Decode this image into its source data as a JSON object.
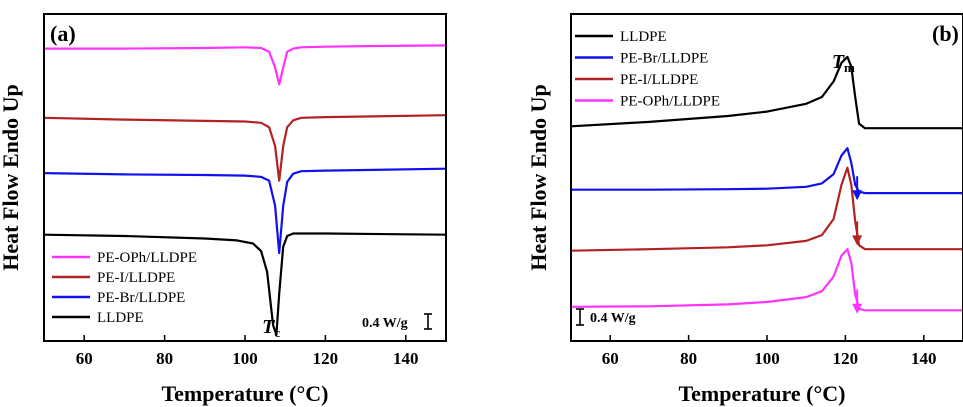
{
  "chart_data": [
    {
      "panel_label": "(a)",
      "type": "line",
      "xlabel": "Temperature (°C)",
      "ylabel": "Heat Flow Endo Up",
      "xlim": [
        50,
        150
      ],
      "xticks": [
        60,
        80,
        100,
        120,
        140
      ],
      "y_units_hidden": true,
      "scale_bar": "0.4 W/g",
      "annotation": {
        "main": "T",
        "sub": "c",
        "x": 107.5
      },
      "legend_position": "bottom-left",
      "legend_order": [
        "PE-OPh/LLDPE",
        "PE-I/LLDPE",
        "PE-Br/LLDPE",
        "LLDPE"
      ],
      "series": [
        {
          "name": "PE-OPh/LLDPE",
          "color": "#ff33ff",
          "x": [
            50,
            70,
            90,
            100,
            104,
            106,
            107.5,
            108.5,
            109.5,
            110.5,
            112,
            114,
            120,
            130,
            150
          ],
          "y": [
            3.1,
            3.1,
            3.11,
            3.12,
            3.11,
            3.05,
            2.8,
            2.53,
            2.8,
            3.05,
            3.1,
            3.12,
            3.13,
            3.14,
            3.15
          ]
        },
        {
          "name": "PE-I/LLDPE",
          "color": "#b22222",
          "x": [
            50,
            70,
            90,
            100,
            104,
            106,
            107.5,
            108.5,
            109.5,
            110.5,
            112,
            114,
            120,
            130,
            150
          ],
          "y": [
            2.0,
            1.97,
            1.95,
            1.94,
            1.92,
            1.85,
            1.55,
            1.0,
            1.55,
            1.85,
            1.96,
            2.0,
            2.01,
            2.02,
            2.04
          ]
        },
        {
          "name": "PE-Br/LLDPE",
          "color": "#1111ee",
          "x": [
            50,
            70,
            90,
            100,
            104,
            106,
            107.5,
            108.5,
            109.5,
            110.5,
            112,
            114,
            120,
            130,
            150
          ],
          "y": [
            1.12,
            1.1,
            1.09,
            1.08,
            1.06,
            1.0,
            0.6,
            -0.15,
            0.6,
            0.98,
            1.11,
            1.15,
            1.16,
            1.17,
            1.19
          ]
        },
        {
          "name": "LLDPE",
          "color": "#000000",
          "x": [
            50,
            70,
            90,
            98,
            102,
            104,
            105.5,
            107,
            107.8,
            108.5,
            109.5,
            110.5,
            112,
            120,
            150
          ],
          "y": [
            0.14,
            0.12,
            0.08,
            0.05,
            0.0,
            -0.12,
            -0.45,
            -1.3,
            -1.45,
            -0.8,
            -0.05,
            0.12,
            0.16,
            0.16,
            0.14
          ]
        }
      ]
    },
    {
      "panel_label": "(b)",
      "type": "line",
      "xlabel": "Temperature (°C)",
      "ylabel": "Heat Flow Endo Up",
      "xlim": [
        50,
        150
      ],
      "xticks": [
        60,
        80,
        100,
        120,
        140
      ],
      "y_units_hidden": true,
      "scale_bar": "0.4 W/g",
      "annotation": {
        "main": "T",
        "sub": "m",
        "x": 120.5
      },
      "legend_position": "top-left",
      "legend_order": [
        "LLDPE",
        "PE-Br/LLDPE",
        "PE-I/LLDPE",
        "PE-OPh/LLDPE"
      ],
      "arrows_x": 123,
      "series": [
        {
          "name": "LLDPE",
          "color": "#000000",
          "x": [
            50,
            70,
            90,
            100,
            110,
            114,
            117,
            119,
            120.5,
            121.5,
            122.5,
            123.5,
            125,
            130,
            150
          ],
          "y": [
            4.0,
            4.09,
            4.21,
            4.3,
            4.46,
            4.6,
            4.92,
            5.3,
            5.42,
            5.22,
            4.6,
            4.05,
            3.96,
            3.96,
            3.96
          ]
        },
        {
          "name": "PE-Br/LLDPE",
          "color": "#1111ee",
          "x": [
            50,
            70,
            90,
            100,
            110,
            114,
            117,
            119,
            120.5,
            121.5,
            122.5,
            123.5,
            125,
            130,
            150
          ],
          "y": [
            2.7,
            2.7,
            2.71,
            2.72,
            2.76,
            2.83,
            3.02,
            3.4,
            3.55,
            3.25,
            2.8,
            2.66,
            2.63,
            2.63,
            2.63
          ]
        },
        {
          "name": "PE-I/LLDPE",
          "color": "#b22222",
          "x": [
            50,
            70,
            90,
            100,
            110,
            114,
            117,
            119,
            120.5,
            121.5,
            122.5,
            123.5,
            125,
            130,
            150
          ],
          "y": [
            1.45,
            1.48,
            1.52,
            1.56,
            1.65,
            1.77,
            2.1,
            2.8,
            3.15,
            2.8,
            2.05,
            1.56,
            1.48,
            1.48,
            1.48
          ]
        },
        {
          "name": "PE-OPh/LLDPE",
          "color": "#ff33ff",
          "x": [
            50,
            70,
            90,
            100,
            110,
            114,
            117,
            119,
            120.5,
            121.5,
            122.5,
            123.5,
            125,
            130,
            150
          ],
          "y": [
            0.3,
            0.31,
            0.35,
            0.4,
            0.5,
            0.62,
            0.92,
            1.35,
            1.48,
            1.2,
            0.55,
            0.26,
            0.23,
            0.23,
            0.23
          ]
        }
      ]
    }
  ]
}
